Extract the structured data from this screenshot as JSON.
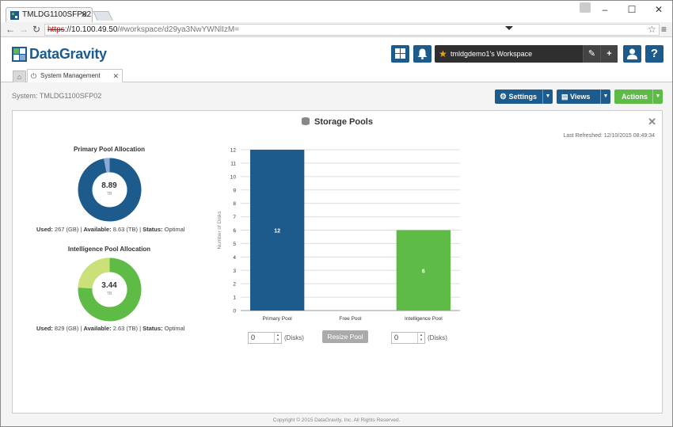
{
  "browser": {
    "tab_title": "TMLDG1100SFP02 - |",
    "url_scheme": "https",
    "url_host": "://10.100.49.50",
    "url_path": "/#workspace/d29ya3NwYWNlIzM=",
    "win_minimize": "–",
    "win_maximize": "☐",
    "win_close": "✕"
  },
  "header": {
    "logo_text": "DataGravity",
    "workspace_name": "tmldgdemo1's Workspace"
  },
  "app_tabs": {
    "active_tab": "System Management"
  },
  "content": {
    "system_label": "System: TMLDG1100SFP02",
    "settings_label": "Settings",
    "views_label": "Views",
    "actions_label": "Actions"
  },
  "panel": {
    "title": "Storage Pools",
    "last_refreshed": "Last Refreshed: 12/10/2015 08:49:34",
    "primary": {
      "title": "Primary Pool Allocation",
      "value": "8.89",
      "unit": "TB",
      "used_label": "Used:",
      "used_value": " 267 (GB) | ",
      "available_label": "Available:",
      "available_value": " 8.63 (TB) | ",
      "status_label": "Status:",
      "status_value": " Optimal",
      "used_fraction": 0.03,
      "used_color": "#8aa9d6",
      "free_color": "#1d5b8c"
    },
    "intelligence": {
      "title": "Intelligence Pool Allocation",
      "value": "3.44",
      "unit": "TB",
      "used_label": "Used:",
      "used_value": " 829 (GB) | ",
      "available_label": "Available:",
      "available_value": " 2.63 (TB) | ",
      "status_label": "Status:",
      "status_value": " Optimal",
      "used_fraction": 0.24,
      "used_color": "#cce07a",
      "free_color": "#5dbb46"
    },
    "primary_disks": "0",
    "intelligence_disks": "0",
    "disks_unit": "(Disks)",
    "resize_label": "Resize Pool",
    "footer": "Copyright © 2015 DataGravity, Inc. All Rights Reserved."
  },
  "chart_data": {
    "type": "bar",
    "categories": [
      "Primary Pool",
      "Free Pool",
      "Intelligence Pool"
    ],
    "values": [
      12,
      0,
      6
    ],
    "data_labels": [
      "12",
      "",
      "6"
    ],
    "colors": [
      "#1d5b8c",
      "#cccccc",
      "#5dbb46"
    ],
    "ylabel": "Number of Disks",
    "ylim": [
      0,
      12
    ],
    "yticks": [
      0,
      1,
      2,
      3,
      4,
      5,
      6,
      7,
      8,
      9,
      10,
      11,
      12
    ],
    "grid": true
  }
}
